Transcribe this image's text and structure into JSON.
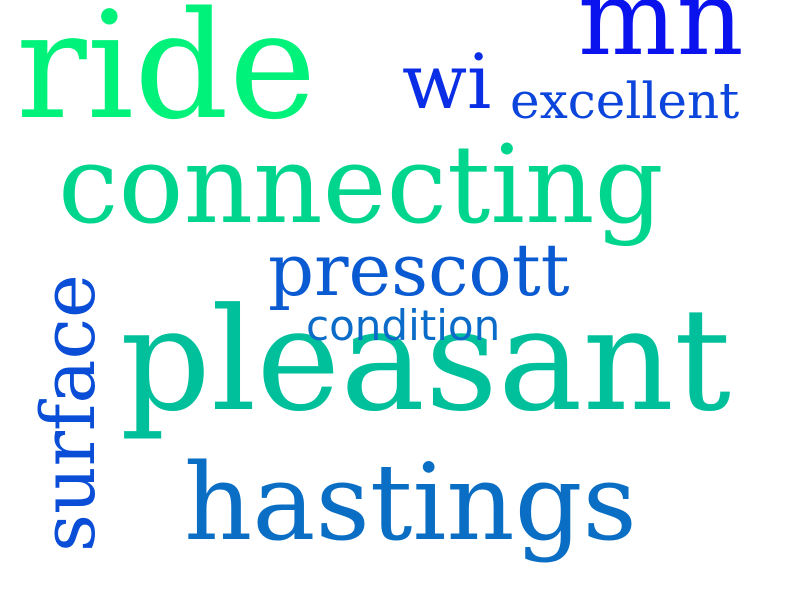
{
  "words": {
    "ride": {
      "text": "ride",
      "color": "#00f27a"
    },
    "mn": {
      "text": "mn",
      "color": "#0a12ee"
    },
    "wi": {
      "text": "wi",
      "color": "#0a2ee6"
    },
    "excellent": {
      "text": "excellent",
      "color": "#0c45dc"
    },
    "connecting": {
      "text": "connecting",
      "color": "#00d58e"
    },
    "prescott": {
      "text": "prescott",
      "color": "#0a5ad2"
    },
    "condition": {
      "text": "condition",
      "color": "#0a6cc8"
    },
    "pleasant": {
      "text": "pleasant",
      "color": "#00c09c"
    },
    "hastings": {
      "text": "hastings",
      "color": "#0a6ec4"
    },
    "surface": {
      "text": "surface",
      "color": "#0a4ed8"
    }
  }
}
